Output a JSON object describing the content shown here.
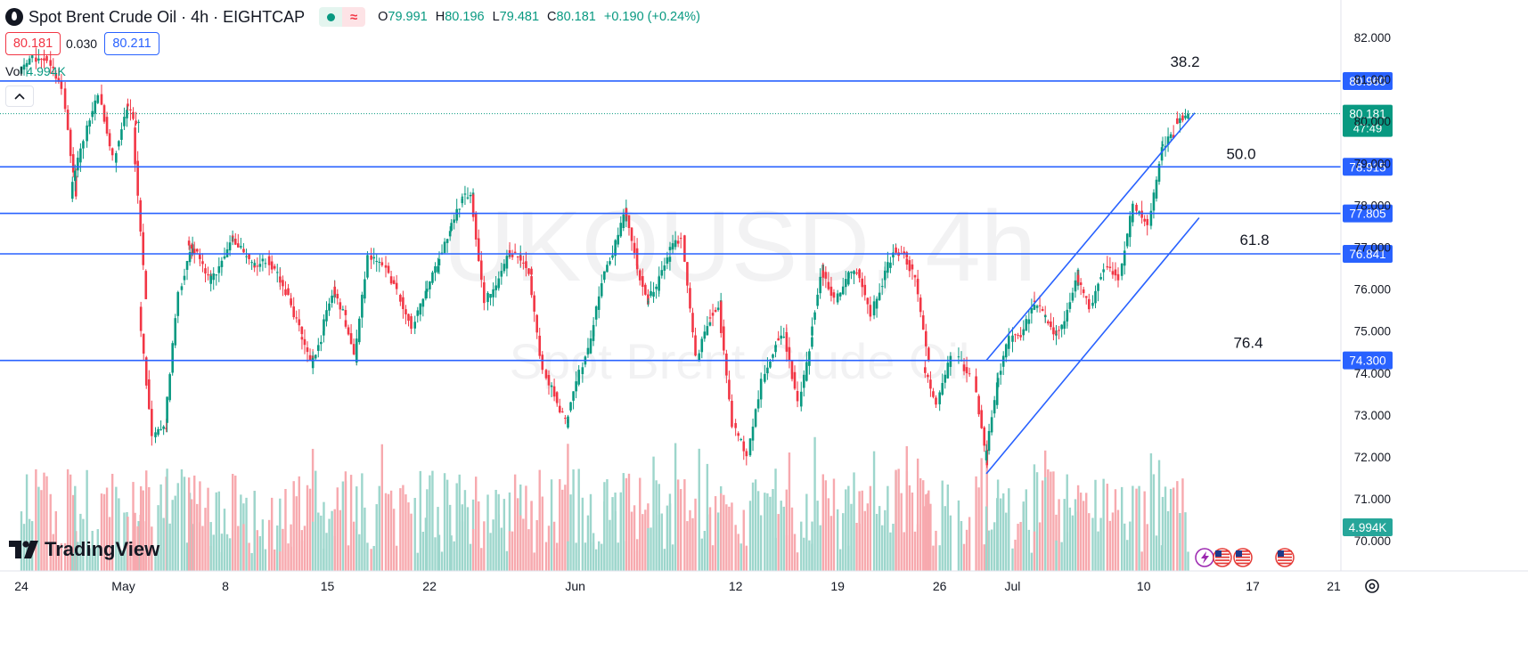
{
  "header": {
    "symbol_title": "Spot Brent Crude Oil · 4h · EIGHTCAP",
    "ohlc": [
      {
        "k": "O",
        "v": "79.991"
      },
      {
        "k": "H",
        "v": "80.196"
      },
      {
        "k": "L",
        "v": "79.481"
      },
      {
        "k": "C",
        "v": "80.181"
      },
      {
        "k": "",
        "v": "+0.190 (+0.24%)"
      }
    ],
    "bid": "80.181",
    "spread": "0.030",
    "ask": "80.211",
    "volume_label": "Vol",
    "volume_value": "4.994K"
  },
  "logo_text": "TradingView",
  "chart_data": {
    "type": "candlestick",
    "watermark_symbol": "UKOUSD, 4h",
    "watermark_name": "Spot Brent Crude Oil",
    "ylim": [
      69.6,
      82.6
    ],
    "y_ticks": [
      "82.000",
      "81.000",
      "80.000",
      "79.000",
      "78.000",
      "77.000",
      "76.000",
      "75.000",
      "74.000",
      "73.000",
      "72.000",
      "71.000",
      "70.000"
    ],
    "x_ticks": [
      {
        "label": "24",
        "day": 0
      },
      {
        "label": "May",
        "day": 7
      },
      {
        "label": "8",
        "day": 14
      },
      {
        "label": "15",
        "day": 21
      },
      {
        "label": "22",
        "day": 28
      },
      {
        "label": "Jun",
        "day": 38
      },
      {
        "label": "12",
        "day": 49
      },
      {
        "label": "19",
        "day": 56
      },
      {
        "label": "26",
        "day": 63
      },
      {
        "label": "Jul",
        "day": 68
      },
      {
        "label": "10",
        "day": 77
      },
      {
        "label": "17",
        "day": 84
      },
      {
        "label": "21",
        "day": 88
      }
    ],
    "horizontal_levels": [
      {
        "price": 80.96,
        "label": "80.960",
        "fib": "38.2"
      },
      {
        "price": 78.915,
        "label": "78.915",
        "fib": "50.0"
      },
      {
        "price": 77.805,
        "label": "77.805",
        "fib": ""
      },
      {
        "price": 76.841,
        "label": "76.841",
        "fib": "61.8"
      },
      {
        "price": 74.3,
        "label": "74.300",
        "fib": "76.4"
      }
    ],
    "current_price": {
      "label": "80.181",
      "countdown": "47:49",
      "price": 80.181
    },
    "volume_tag": "4.994K",
    "channel": {
      "upper": [
        {
          "day": 66.2,
          "price": 74.3
        },
        {
          "day": 80.5,
          "price": 80.2
        }
      ],
      "lower": [
        {
          "day": 66.2,
          "price": 71.6
        },
        {
          "day": 80.8,
          "price": 77.7
        }
      ]
    },
    "colors": {
      "up": "#089981",
      "down": "#f23645",
      "level": "#2962ff",
      "vol_up": "#9dd6cc",
      "vol_down": "#f7a9ae"
    },
    "candle_path": [
      {
        "day": 0,
        "price": 81.2
      },
      {
        "day": 2,
        "price": 81.6
      },
      {
        "day": 3,
        "price": 80.7
      },
      {
        "day": 3.5,
        "price": 77.9
      },
      {
        "day": 4.5,
        "price": 79.5
      },
      {
        "day": 5.5,
        "price": 80.6
      },
      {
        "day": 6.5,
        "price": 79.3
      },
      {
        "day": 7.3,
        "price": 80.1
      },
      {
        "day": 7.8,
        "price": 79.8
      },
      {
        "day": 8.2,
        "price": 75.5
      },
      {
        "day": 9.2,
        "price": 72.4
      },
      {
        "day": 10,
        "price": 72.8
      },
      {
        "day": 11,
        "price": 75.8
      },
      {
        "day": 11.5,
        "price": 77.2
      },
      {
        "day": 13,
        "price": 76.3
      },
      {
        "day": 14.5,
        "price": 77.1
      },
      {
        "day": 16,
        "price": 76.4
      },
      {
        "day": 17,
        "price": 76.9
      },
      {
        "day": 18.5,
        "price": 75.6
      },
      {
        "day": 20,
        "price": 74.3
      },
      {
        "day": 21.5,
        "price": 75.8
      },
      {
        "day": 23,
        "price": 74.4
      },
      {
        "day": 24,
        "price": 76.8
      },
      {
        "day": 26,
        "price": 76.1
      },
      {
        "day": 27,
        "price": 75.3
      },
      {
        "day": 29.5,
        "price": 77.4
      },
      {
        "day": 31,
        "price": 78.3
      },
      {
        "day": 32,
        "price": 75.6
      },
      {
        "day": 33.5,
        "price": 76.9
      },
      {
        "day": 35,
        "price": 76.2
      },
      {
        "day": 36,
        "price": 74.1
      },
      {
        "day": 37.5,
        "price": 72.6
      },
      {
        "day": 38.5,
        "price": 73.9
      },
      {
        "day": 40,
        "price": 76.4
      },
      {
        "day": 41.5,
        "price": 77.8
      },
      {
        "day": 43,
        "price": 75.6
      },
      {
        "day": 44.5,
        "price": 76.9
      },
      {
        "day": 45.5,
        "price": 77.3
      },
      {
        "day": 46.5,
        "price": 74.4
      },
      {
        "day": 48,
        "price": 75.7
      },
      {
        "day": 49,
        "price": 73.0
      },
      {
        "day": 50,
        "price": 72.2
      },
      {
        "day": 51,
        "price": 74.0
      },
      {
        "day": 52.5,
        "price": 75.2
      },
      {
        "day": 53.5,
        "price": 73.4
      },
      {
        "day": 55,
        "price": 76.6
      },
      {
        "day": 56,
        "price": 75.9
      },
      {
        "day": 57.5,
        "price": 76.4
      },
      {
        "day": 58.5,
        "price": 75.4
      },
      {
        "day": 60,
        "price": 76.9
      },
      {
        "day": 61.5,
        "price": 76.4
      },
      {
        "day": 62,
        "price": 74.2
      },
      {
        "day": 63,
        "price": 73.3
      },
      {
        "day": 64.3,
        "price": 74.4
      },
      {
        "day": 65.5,
        "price": 73.8
      },
      {
        "day": 66.2,
        "price": 71.9
      },
      {
        "day": 67,
        "price": 73.7
      },
      {
        "day": 68,
        "price": 74.6
      },
      {
        "day": 69.5,
        "price": 75.6
      },
      {
        "day": 71,
        "price": 74.8
      },
      {
        "day": 72.5,
        "price": 76.3
      },
      {
        "day": 73.5,
        "price": 75.5
      },
      {
        "day": 74.5,
        "price": 76.6
      },
      {
        "day": 75.5,
        "price": 76.1
      },
      {
        "day": 76.5,
        "price": 77.9
      },
      {
        "day": 77.5,
        "price": 77.6
      },
      {
        "day": 78.3,
        "price": 79.2
      },
      {
        "day": 79.3,
        "price": 79.4
      },
      {
        "day": 80.3,
        "price": 80.18
      }
    ]
  }
}
